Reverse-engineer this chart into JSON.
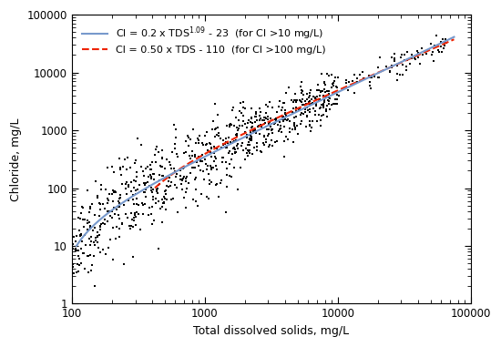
{
  "xlabel": "Total dissolved solids, mg/L",
  "ylabel": "Chloride, mg/L",
  "xlim": [
    100,
    100000
  ],
  "ylim": [
    1,
    100000
  ],
  "curve1_color": "#7799cc",
  "curve2_color": "#ee2200",
  "scatter_color": "#000000",
  "scatter_size": 3,
  "background_color": "#ffffff",
  "legend_fontsize": 8,
  "axis_fontsize": 9,
  "tick_fontsize": 8.5
}
